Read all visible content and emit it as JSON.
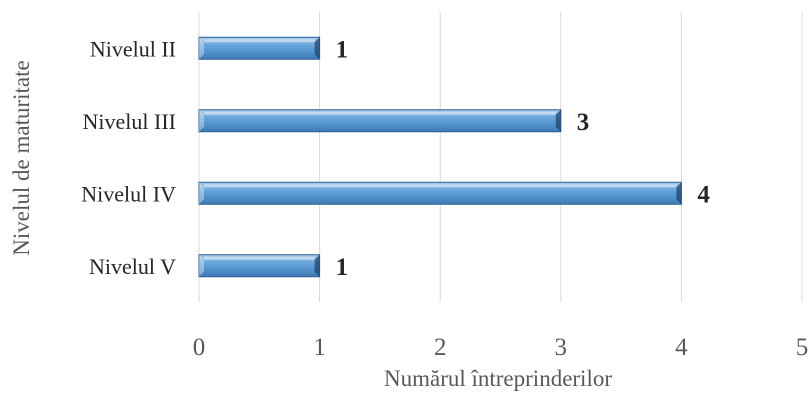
{
  "chart_data": {
    "type": "bar",
    "orientation": "horizontal",
    "categories": [
      "Nivelul II",
      "Nivelul III",
      "Nivelul IV",
      "Nivelul V"
    ],
    "values": [
      1,
      3,
      4,
      1
    ],
    "data_labels": [
      "1",
      "3",
      "4",
      "1"
    ],
    "title": "",
    "xlabel": "Numărul întreprinderilor",
    "ylabel": "Nivelul de maturitate",
    "xlim": [
      0,
      5
    ],
    "xticks": [
      "0",
      "1",
      "2",
      "3",
      "4",
      "5"
    ],
    "grid": "vertical",
    "legend": "none",
    "bar_color": "#5b9bd5"
  }
}
